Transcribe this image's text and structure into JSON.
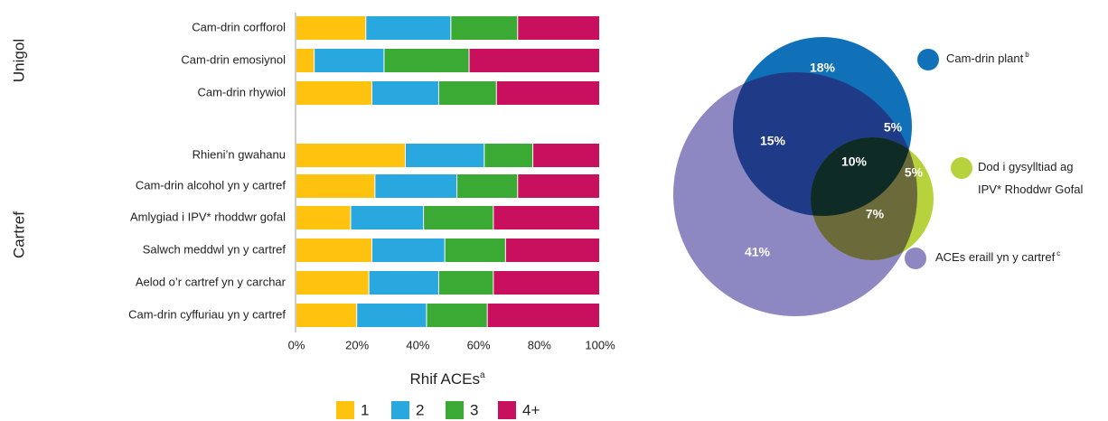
{
  "chart_data": [
    {
      "type": "bar",
      "orientation": "horizontal",
      "stacked": true,
      "groups": [
        {
          "name": "Unigol",
          "categories": [
            "Cam-drin corfforol",
            "Cam-drin emosiynol",
            "Cam-drin rhywiol"
          ]
        },
        {
          "name": "Cartref",
          "categories": [
            "Rhieni’n gwahanu",
            "Cam-drin alcohol yn y cartref",
            "Amlygiad i IPV* rhoddwr gofal",
            "Salwch meddwl yn y cartref",
            "Aelod o’r cartref yn y carchar",
            "Cam-drin cyffuriau yn y cartref"
          ]
        }
      ],
      "series": [
        {
          "name": "1",
          "color": "#ffc20e",
          "values": [
            23,
            6,
            25,
            36,
            26,
            18,
            25,
            24,
            20
          ]
        },
        {
          "name": "2",
          "color": "#29a8e0",
          "values": [
            28,
            23,
            22,
            26,
            27,
            24,
            24,
            23,
            23
          ]
        },
        {
          "name": "3",
          "color": "#3aaa35",
          "values": [
            22,
            28,
            19,
            16,
            20,
            23,
            20,
            18,
            20
          ]
        },
        {
          "name": "4+",
          "color": "#c8105e",
          "values": [
            27,
            43,
            34,
            22,
            27,
            35,
            31,
            35,
            37
          ]
        }
      ],
      "xlim": [
        0,
        100
      ],
      "xticks": [
        {
          "value": 0,
          "label": "0%"
        },
        {
          "value": 20,
          "label": "20%"
        },
        {
          "value": 40,
          "label": "40%"
        },
        {
          "value": 60,
          "label": "60%"
        },
        {
          "value": 80,
          "label": "80%"
        },
        {
          "value": 100,
          "label": "100%"
        }
      ],
      "legend_title": "Rhif ACEs",
      "legend_title_note": "a",
      "legend": "bottom"
    },
    {
      "type": "venn",
      "sets": [
        {
          "label_lines": [
            "Cam-drin plant"
          ],
          "note": "b",
          "color": "#1071b9"
        },
        {
          "label_lines": [
            "Dod i gysylltiad ag",
            "IPV* Rhoddwr Gofal"
          ],
          "color": "#b6d23c"
        },
        {
          "label_lines": [
            "ACEs eraill yn y cartref"
          ],
          "note": "c",
          "color": "#8d88c2"
        }
      ],
      "regions": [
        18,
        5,
        5,
        15,
        10,
        7,
        41
      ],
      "value_labels": [
        "18%",
        "5%",
        "5%",
        "15%",
        "10%",
        "7%",
        "41%"
      ]
    }
  ]
}
